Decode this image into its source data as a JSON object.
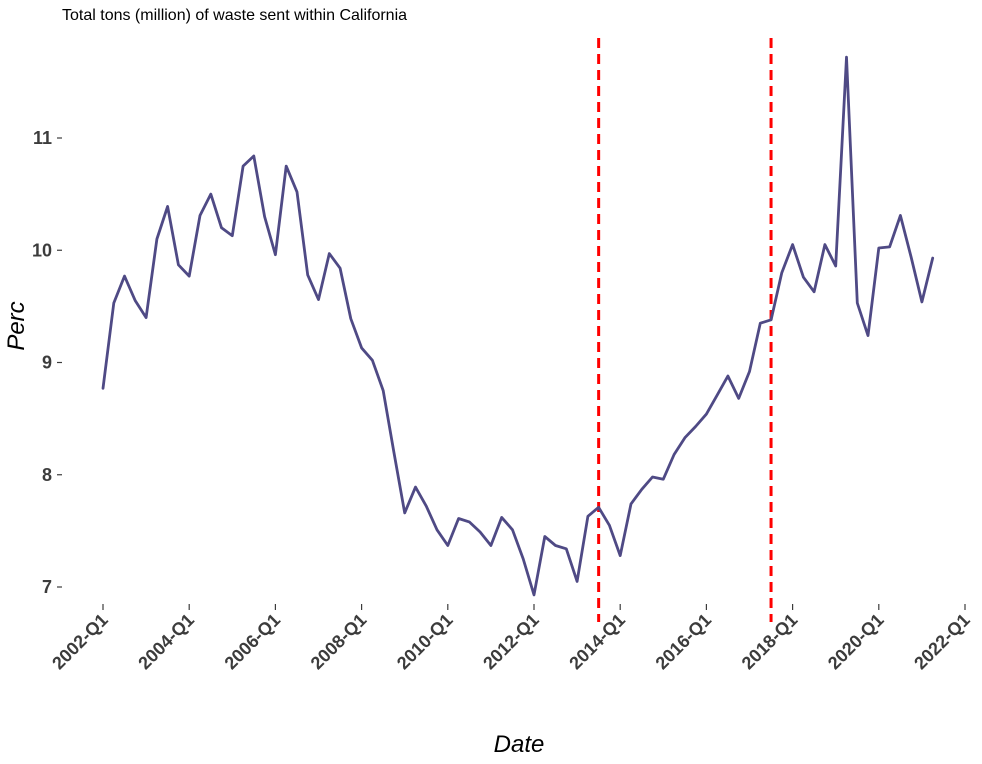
{
  "chart_data": {
    "type": "line",
    "title": "Total tons (million) of waste sent within California",
    "xlabel": "Date",
    "ylabel": "Perc",
    "x_ticks": [
      "2002-Q1",
      "2004-Q1",
      "2006-Q1",
      "2008-Q1",
      "2010-Q1",
      "2012-Q1",
      "2014-Q1",
      "2016-Q1",
      "2018-Q1",
      "2020-Q1",
      "2022-Q1"
    ],
    "y_ticks": [
      7,
      8,
      9,
      10,
      11
    ],
    "ylim": [
      6.7,
      11.9
    ],
    "xlim": [
      "2001-Q3",
      "2022-Q1"
    ],
    "grid": false,
    "series": [
      {
        "color": "#4f4a85",
        "x": [
          "2002-Q1",
          "2002-Q2",
          "2002-Q3",
          "2002-Q4",
          "2003-Q1",
          "2003-Q2",
          "2003-Q3",
          "2003-Q4",
          "2004-Q1",
          "2004-Q2",
          "2004-Q3",
          "2004-Q4",
          "2005-Q1",
          "2005-Q2",
          "2005-Q3",
          "2005-Q4",
          "2006-Q1",
          "2006-Q2",
          "2006-Q3",
          "2006-Q4",
          "2007-Q1",
          "2007-Q2",
          "2007-Q3",
          "2007-Q4",
          "2008-Q1",
          "2008-Q2",
          "2008-Q3",
          "2008-Q4",
          "2009-Q1",
          "2009-Q2",
          "2009-Q3",
          "2009-Q4",
          "2010-Q1",
          "2010-Q2",
          "2010-Q3",
          "2010-Q4",
          "2011-Q1",
          "2011-Q2",
          "2011-Q3",
          "2011-Q4",
          "2012-Q1",
          "2012-Q2",
          "2012-Q3",
          "2012-Q4",
          "2013-Q1",
          "2013-Q2",
          "2013-Q3",
          "2013-Q4",
          "2014-Q1",
          "2014-Q2",
          "2014-Q3",
          "2014-Q4",
          "2015-Q1",
          "2015-Q2",
          "2015-Q3",
          "2015-Q4",
          "2016-Q1",
          "2016-Q2",
          "2016-Q3",
          "2016-Q4",
          "2017-Q1",
          "2017-Q2",
          "2017-Q3",
          "2017-Q4",
          "2018-Q1",
          "2018-Q2",
          "2018-Q3",
          "2018-Q4",
          "2019-Q1",
          "2019-Q2",
          "2019-Q3",
          "2019-Q4",
          "2020-Q1",
          "2020-Q2",
          "2020-Q3",
          "2020-Q4",
          "2021-Q1",
          "2021-Q2"
        ],
        "values": [
          8.77,
          9.53,
          9.77,
          9.55,
          9.4,
          10.1,
          10.39,
          9.87,
          9.77,
          10.31,
          10.5,
          10.2,
          10.13,
          10.75,
          10.84,
          10.3,
          9.96,
          10.75,
          10.52,
          9.78,
          9.56,
          9.97,
          9.84,
          9.39,
          9.13,
          9.02,
          8.75,
          8.2,
          7.66,
          7.89,
          7.72,
          7.51,
          7.37,
          7.61,
          7.58,
          7.49,
          7.37,
          7.62,
          7.51,
          7.25,
          6.93,
          7.45,
          7.37,
          7.34,
          7.05,
          7.63,
          7.71,
          7.55,
          7.28,
          7.74,
          7.87,
          7.98,
          7.96,
          8.18,
          8.33,
          8.43,
          8.54,
          8.71,
          8.88,
          8.68,
          8.92,
          9.35,
          9.38,
          9.8,
          10.05,
          9.76,
          9.63,
          10.05,
          9.86,
          11.72,
          9.53,
          9.24,
          10.02,
          10.03,
          10.31,
          9.94,
          9.54,
          9.93
        ]
      }
    ],
    "vlines": [
      {
        "x": "2013-Q3",
        "color": "#ff0000",
        "style": "dashed"
      },
      {
        "x": "2017-Q3",
        "color": "#ff0000",
        "style": "dashed"
      }
    ]
  }
}
